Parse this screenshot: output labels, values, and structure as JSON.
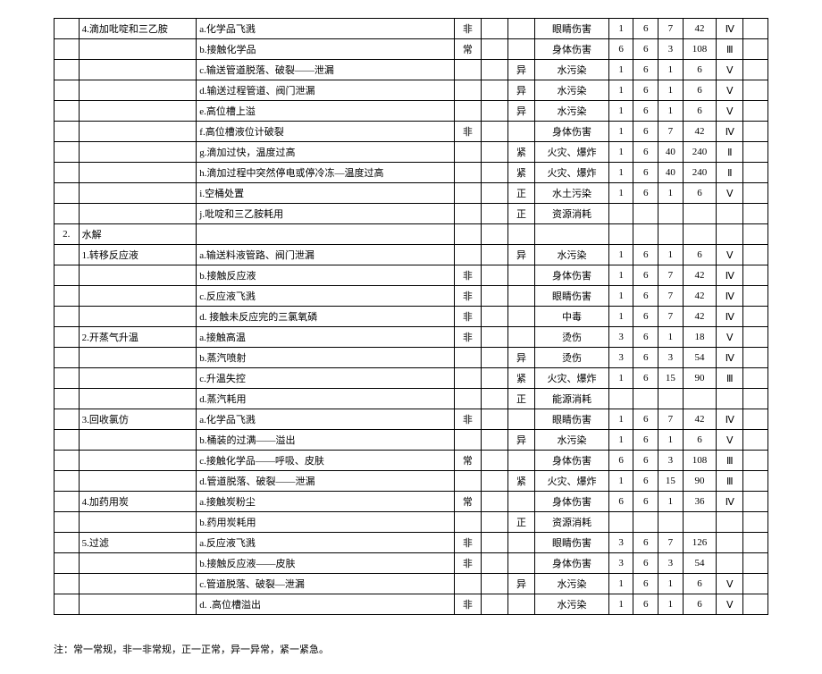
{
  "footnote": "注：常一常规，非一非常规，正一正常，异一异常，紧一紧急。",
  "rows": [
    {
      "idx": "",
      "step": "4.滴加吡啶和三乙胺",
      "cause": "a.化学品飞溅",
      "t1": "非",
      "t2": "",
      "t3": "",
      "effect": "眼睛伤害",
      "n1": "1",
      "n2": "6",
      "n3": "7",
      "n4": "42",
      "lvl": "Ⅳ"
    },
    {
      "idx": "",
      "step": "",
      "cause": "b.接触化学品",
      "t1": "常",
      "t2": "",
      "t3": "",
      "effect": "身体伤害",
      "n1": "6",
      "n2": "6",
      "n3": "3",
      "n4": "108",
      "lvl": "Ⅲ"
    },
    {
      "idx": "",
      "step": "",
      "cause": "c.输送管道脱落、破裂——泄漏",
      "t1": "",
      "t2": "",
      "t3": "异",
      "effect": "水污染",
      "n1": "1",
      "n2": "6",
      "n3": "1",
      "n4": "6",
      "lvl": "Ⅴ"
    },
    {
      "idx": "",
      "step": "",
      "cause": "d.输送过程管道、阀门泄漏",
      "t1": "",
      "t2": "",
      "t3": "异",
      "effect": "水污染",
      "n1": "1",
      "n2": "6",
      "n3": "1",
      "n4": "6",
      "lvl": "Ⅴ"
    },
    {
      "idx": "",
      "step": "",
      "cause": "e.高位槽上溢",
      "t1": "",
      "t2": "",
      "t3": "异",
      "effect": "水污染",
      "n1": "1",
      "n2": "6",
      "n3": "1",
      "n4": "6",
      "lvl": "Ⅴ"
    },
    {
      "idx": "",
      "step": "",
      "cause": "f.高位槽液位计破裂",
      "t1": "非",
      "t2": "",
      "t3": "",
      "effect": "身体伤害",
      "n1": "1",
      "n2": "6",
      "n3": "7",
      "n4": "42",
      "lvl": "Ⅳ"
    },
    {
      "idx": "",
      "step": "",
      "cause": "g.滴加过快，温度过高",
      "t1": "",
      "t2": "",
      "t3": "紧",
      "effect": "火灾、爆炸",
      "n1": "1",
      "n2": "6",
      "n3": "40",
      "n4": "240",
      "lvl": "Ⅱ"
    },
    {
      "idx": "",
      "step": "",
      "cause": "h.滴加过程中突然停电或停冷冻—温度过高",
      "t1": "",
      "t2": "",
      "t3": "紧",
      "effect": "火灾、爆炸",
      "n1": "1",
      "n2": "6",
      "n3": "40",
      "n4": "240",
      "lvl": "Ⅱ"
    },
    {
      "idx": "",
      "step": "",
      "cause": "i.空桶处置",
      "t1": "",
      "t2": "",
      "t3": "正",
      "effect": "水土污染",
      "n1": "1",
      "n2": "6",
      "n3": "1",
      "n4": "6",
      "lvl": "Ⅴ"
    },
    {
      "idx": "",
      "step": "",
      "cause": "j.吡啶和三乙胺耗用",
      "t1": "",
      "t2": "",
      "t3": "正",
      "effect": "资源消耗",
      "n1": "",
      "n2": "",
      "n3": "",
      "n4": "",
      "lvl": ""
    },
    {
      "idx": "2.",
      "step": "水解",
      "cause": "",
      "t1": "",
      "t2": "",
      "t3": "",
      "effect": "",
      "n1": "",
      "n2": "",
      "n3": "",
      "n4": "",
      "lvl": ""
    },
    {
      "idx": "",
      "step": "1.转移反应液",
      "cause": "a.输送料液管路、阀门泄漏",
      "t1": "",
      "t2": "",
      "t3": "异",
      "effect": "水污染",
      "n1": "1",
      "n2": "6",
      "n3": "1",
      "n4": "6",
      "lvl": "Ⅴ"
    },
    {
      "idx": "",
      "step": "",
      "cause": "b.接触反应液",
      "t1": "非",
      "t2": "",
      "t3": "",
      "effect": "身体伤害",
      "n1": "1",
      "n2": "6",
      "n3": "7",
      "n4": "42",
      "lvl": "Ⅳ"
    },
    {
      "idx": "",
      "step": "",
      "cause": "c.反应液飞溅",
      "t1": "非",
      "t2": "",
      "t3": "",
      "effect": "眼睛伤害",
      "n1": "1",
      "n2": "6",
      "n3": "7",
      "n4": "42",
      "lvl": "Ⅳ"
    },
    {
      "idx": "",
      "step": "",
      "cause": "d. 接触未反应完的三氯氧磷",
      "t1": "非",
      "t2": "",
      "t3": "",
      "effect": "中毒",
      "n1": "1",
      "n2": "6",
      "n3": "7",
      "n4": "42",
      "lvl": "Ⅳ"
    },
    {
      "idx": "",
      "step": "2.开蒸气升温",
      "cause": "a.接触高温",
      "t1": "非",
      "t2": "",
      "t3": "",
      "effect": "烫伤",
      "n1": "3",
      "n2": "6",
      "n3": "1",
      "n4": "18",
      "lvl": "Ⅴ"
    },
    {
      "idx": "",
      "step": "",
      "cause": "b.蒸汽喷射",
      "t1": "",
      "t2": "",
      "t3": "异",
      "effect": "烫伤",
      "n1": "3",
      "n2": "6",
      "n3": "3",
      "n4": "54",
      "lvl": "Ⅳ"
    },
    {
      "idx": "",
      "step": "",
      "cause": "c.升温失控",
      "t1": "",
      "t2": "",
      "t3": "紧",
      "effect": "火灾、爆炸",
      "n1": "1",
      "n2": "6",
      "n3": "15",
      "n4": "90",
      "lvl": "Ⅲ"
    },
    {
      "idx": "",
      "step": "",
      "cause": "d.蒸汽耗用",
      "t1": "",
      "t2": "",
      "t3": "正",
      "effect": "能源消耗",
      "n1": "",
      "n2": "",
      "n3": "",
      "n4": "",
      "lvl": ""
    },
    {
      "idx": "",
      "step": "3.回收氯仿",
      "cause": "a.化学品飞溅",
      "t1": "非",
      "t2": "",
      "t3": "",
      "effect": "眼睛伤害",
      "n1": "1",
      "n2": "6",
      "n3": "7",
      "n4": "42",
      "lvl": "Ⅳ"
    },
    {
      "idx": "",
      "step": "",
      "cause": "b.桶装的过满——溢出",
      "t1": "",
      "t2": "",
      "t3": "异",
      "effect": "水污染",
      "n1": "1",
      "n2": "6",
      "n3": "1",
      "n4": "6",
      "lvl": "Ⅴ"
    },
    {
      "idx": "",
      "step": "",
      "cause": "c.接触化学品——呼吸、皮肤",
      "t1": "常",
      "t2": "",
      "t3": "",
      "effect": "身体伤害",
      "n1": "6",
      "n2": "6",
      "n3": "3",
      "n4": "108",
      "lvl": "Ⅲ"
    },
    {
      "idx": "",
      "step": "",
      "cause": "d.管道脱落、破裂——泄漏",
      "t1": "",
      "t2": "",
      "t3": "紧",
      "effect": "火灾、爆炸",
      "n1": "1",
      "n2": "6",
      "n3": "15",
      "n4": "90",
      "lvl": "Ⅲ"
    },
    {
      "idx": "",
      "step": "4.加药用炭",
      "cause": "a.接触炭粉尘",
      "t1": "常",
      "t2": "",
      "t3": "",
      "effect": "身体伤害",
      "n1": "6",
      "n2": "6",
      "n3": "1",
      "n4": "36",
      "lvl": "Ⅳ"
    },
    {
      "idx": "",
      "step": "",
      "cause": "b.药用炭耗用",
      "t1": "",
      "t2": "",
      "t3": "正",
      "effect": "资源消耗",
      "n1": "",
      "n2": "",
      "n3": "",
      "n4": "",
      "lvl": ""
    },
    {
      "idx": "",
      "step": "5.过滤",
      "cause": "a.反应液飞溅",
      "t1": "非",
      "t2": "",
      "t3": "",
      "effect": "眼睛伤害",
      "n1": "3",
      "n2": "6",
      "n3": "7",
      "n4": "126",
      "lvl": ""
    },
    {
      "idx": "",
      "step": "",
      "cause": "b.接触反应液——皮肤",
      "t1": "非",
      "t2": "",
      "t3": "",
      "effect": "身体伤害",
      "n1": "3",
      "n2": "6",
      "n3": "3",
      "n4": "54",
      "lvl": ""
    },
    {
      "idx": "",
      "step": "",
      "cause": "c.管道脱落、破裂—泄漏",
      "t1": "",
      "t2": "",
      "t3": "异",
      "effect": "水污染",
      "n1": "1",
      "n2": "6",
      "n3": "1",
      "n4": "6",
      "lvl": "Ⅴ"
    },
    {
      "idx": "",
      "step": "",
      "cause": "d. .高位槽溢出",
      "t1": "非",
      "t2": "",
      "t3": "",
      "effect": "水污染",
      "n1": "1",
      "n2": "6",
      "n3": "1",
      "n4": "6",
      "lvl": "Ⅴ"
    }
  ]
}
